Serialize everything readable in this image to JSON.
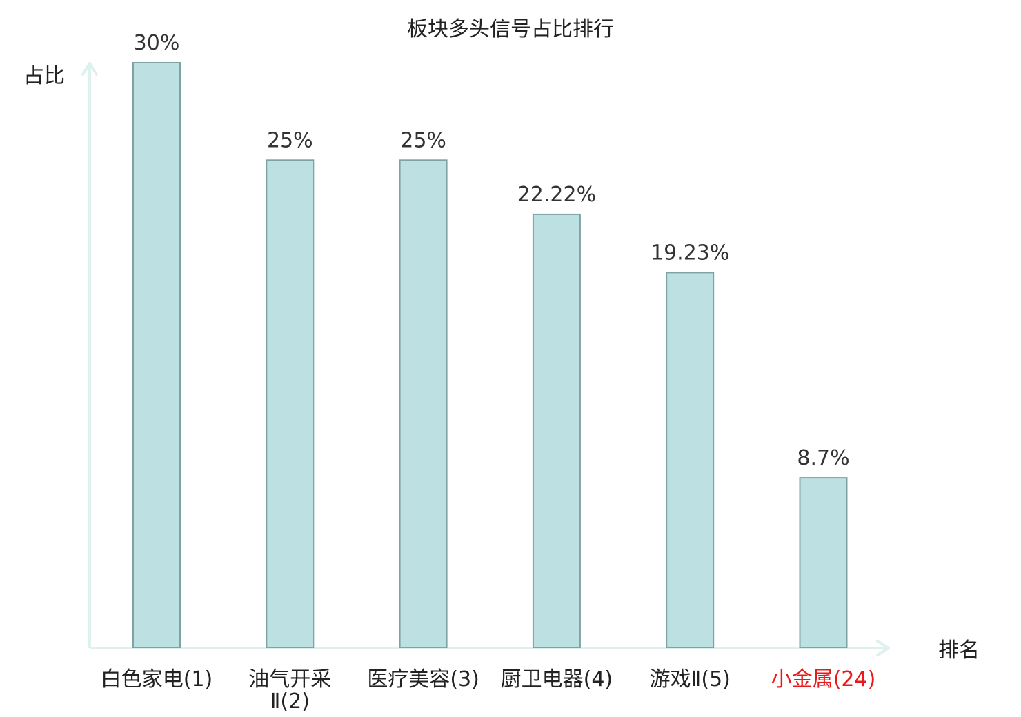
{
  "chart_data": {
    "type": "bar",
    "title": "板块多头信号占比排行",
    "ylabel": "占比",
    "xlabel": "排名",
    "categories": [
      "白色家电(1)",
      "油气开采Ⅱ(2)",
      "医疗美容(3)",
      "厨卫电器(4)",
      "游戏Ⅱ(5)",
      "小金属(24)"
    ],
    "category_lines": [
      [
        "白色家电(1)"
      ],
      [
        "油气开采",
        "Ⅱ(2)"
      ],
      [
        "医疗美容(3)"
      ],
      [
        "厨卫电器(4)"
      ],
      [
        "游戏Ⅱ(5)"
      ],
      [
        "小金属(24)"
      ]
    ],
    "values": [
      30,
      25,
      25,
      22.22,
      19.23,
      8.7
    ],
    "value_labels": [
      "30%",
      "25%",
      "25%",
      "22.22%",
      "19.23%",
      "8.7%"
    ],
    "highlight_index": 5,
    "ylim": [
      0,
      30
    ],
    "grid": false,
    "colors": {
      "bar_fill": "#bde0e3",
      "bar_stroke": "#7fa2a5",
      "axis": "#dff1ee",
      "text": "#222222",
      "highlight": "#e8191b"
    }
  }
}
